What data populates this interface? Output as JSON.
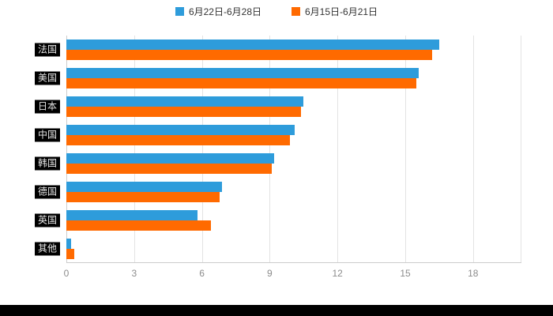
{
  "legend": {
    "series1_label": "6月22日-6月28日",
    "series2_label": "6月15日-6月21日"
  },
  "colors": {
    "series1": "#2E9CDB",
    "series2": "#FF6A00",
    "axis_text": "#8C8C8C",
    "grid_line": "#E3E3E3",
    "label_chip_bg": "#000000",
    "label_chip_text": "#E6E6E6"
  },
  "chart_data": {
    "type": "bar",
    "orientation": "horizontal",
    "title": "",
    "xlabel": "",
    "ylabel": "",
    "categories": [
      "法国",
      "美国",
      "日本",
      "中国",
      "韩国",
      "德国",
      "英国",
      "其他"
    ],
    "series": [
      {
        "name": "6月22日-6月28日",
        "color": "#2E9CDB",
        "values": [
          16.5,
          15.6,
          10.5,
          10.1,
          9.2,
          6.9,
          5.8,
          0.2
        ]
      },
      {
        "name": "6月15日-6月21日",
        "color": "#FF6A00",
        "values": [
          16.2,
          15.5,
          10.4,
          9.9,
          9.1,
          6.8,
          6.4,
          0.35
        ]
      }
    ],
    "x_ticks": [
      0,
      3,
      6,
      9,
      12,
      15,
      18
    ],
    "xlim": [
      0,
      20
    ],
    "grid": true,
    "legend_position": "top"
  }
}
